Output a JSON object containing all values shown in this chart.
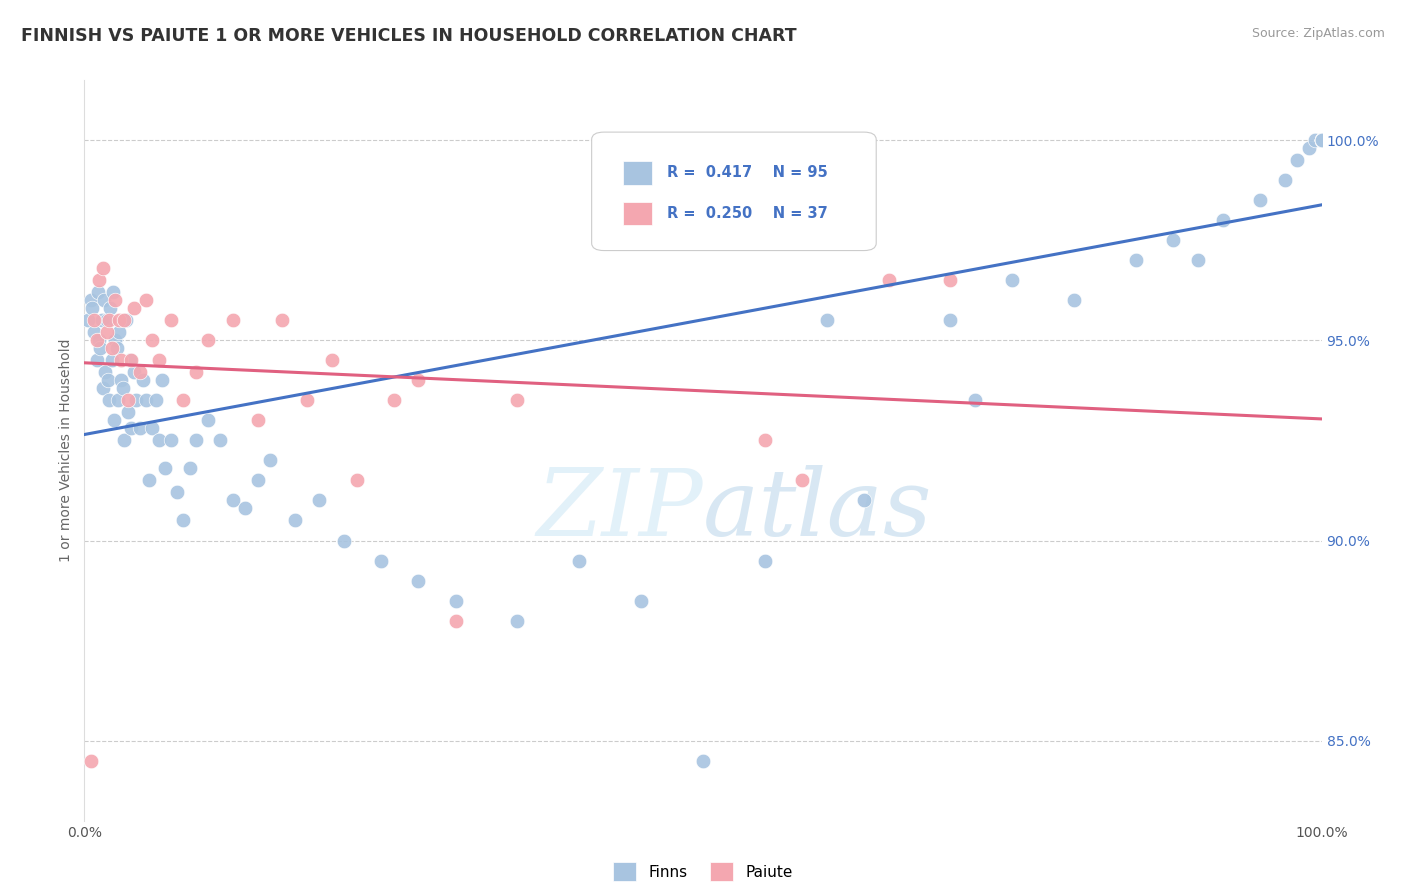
{
  "title": "FINNISH VS PAIUTE 1 OR MORE VEHICLES IN HOUSEHOLD CORRELATION CHART",
  "source": "Source: ZipAtlas.com",
  "ylabel": "1 or more Vehicles in Household",
  "xlim": [
    0.0,
    100.0
  ],
  "ylim": [
    83.0,
    101.5
  ],
  "yticks": [
    85.0,
    90.0,
    95.0,
    100.0
  ],
  "ytick_labels": [
    "85.0%",
    "90.0%",
    "95.0%",
    "100.0%"
  ],
  "finns_color": "#a8c4e0",
  "paiute_color": "#f4a7b0",
  "finns_line_color": "#4472c4",
  "paiute_line_color": "#e06080",
  "finns_R": 0.417,
  "finns_N": 95,
  "paiute_R": 0.25,
  "paiute_N": 37,
  "background_color": "#ffffff",
  "grid_color": "#cccccc",
  "finns_x": [
    0.3,
    0.5,
    0.6,
    0.8,
    1.0,
    1.1,
    1.2,
    1.3,
    1.4,
    1.5,
    1.6,
    1.7,
    1.8,
    1.9,
    2.0,
    2.1,
    2.2,
    2.3,
    2.4,
    2.5,
    2.6,
    2.7,
    2.8,
    3.0,
    3.1,
    3.2,
    3.4,
    3.5,
    3.7,
    3.8,
    4.0,
    4.2,
    4.5,
    4.7,
    5.0,
    5.2,
    5.5,
    5.8,
    6.0,
    6.3,
    6.5,
    7.0,
    7.5,
    8.0,
    8.5,
    9.0,
    10.0,
    11.0,
    12.0,
    13.0,
    14.0,
    15.0,
    17.0,
    19.0,
    21.0,
    24.0,
    27.0,
    30.0,
    35.0,
    40.0,
    45.0,
    50.0,
    55.0,
    60.0,
    63.0,
    70.0,
    72.0,
    75.0,
    80.0,
    85.0,
    88.0,
    90.0,
    92.0,
    95.0,
    97.0,
    98.0,
    99.0,
    99.5,
    100.0,
    100.0,
    100.0,
    100.0,
    100.0,
    100.0,
    100.0,
    100.0,
    100.0,
    100.0,
    100.0,
    100.0,
    100.0,
    100.0,
    100.0,
    100.0,
    100.0
  ],
  "finns_y": [
    95.5,
    96.0,
    95.8,
    95.2,
    94.5,
    96.2,
    95.0,
    94.8,
    95.5,
    93.8,
    96.0,
    94.2,
    95.5,
    94.0,
    93.5,
    95.8,
    94.5,
    96.2,
    93.0,
    95.0,
    94.8,
    93.5,
    95.2,
    94.0,
    93.8,
    92.5,
    95.5,
    93.2,
    94.5,
    92.8,
    94.2,
    93.5,
    92.8,
    94.0,
    93.5,
    91.5,
    92.8,
    93.5,
    92.5,
    94.0,
    91.8,
    92.5,
    91.2,
    90.5,
    91.8,
    92.5,
    93.0,
    92.5,
    91.0,
    90.8,
    91.5,
    92.0,
    90.5,
    91.0,
    90.0,
    89.5,
    89.0,
    88.5,
    88.0,
    89.5,
    88.5,
    84.5,
    89.5,
    95.5,
    91.0,
    95.5,
    93.5,
    96.5,
    96.0,
    97.0,
    97.5,
    97.0,
    98.0,
    98.5,
    99.0,
    99.5,
    99.8,
    100.0,
    100.0,
    100.0,
    100.0,
    100.0,
    100.0,
    100.0,
    100.0,
    100.0,
    100.0,
    100.0,
    100.0,
    100.0,
    100.0,
    100.0,
    100.0,
    100.0,
    100.0
  ],
  "paiute_x": [
    0.5,
    0.8,
    1.0,
    1.2,
    1.5,
    1.8,
    2.0,
    2.2,
    2.5,
    2.8,
    3.0,
    3.2,
    3.5,
    3.8,
    4.0,
    4.5,
    5.0,
    5.5,
    6.0,
    7.0,
    8.0,
    9.0,
    10.0,
    12.0,
    14.0,
    16.0,
    18.0,
    20.0,
    22.0,
    25.0,
    27.0,
    30.0,
    35.0,
    55.0,
    58.0,
    65.0,
    70.0
  ],
  "paiute_y": [
    84.5,
    95.5,
    95.0,
    96.5,
    96.8,
    95.2,
    95.5,
    94.8,
    96.0,
    95.5,
    94.5,
    95.5,
    93.5,
    94.5,
    95.8,
    94.2,
    96.0,
    95.0,
    94.5,
    95.5,
    93.5,
    94.2,
    95.0,
    95.5,
    93.0,
    95.5,
    93.5,
    94.5,
    91.5,
    93.5,
    94.0,
    88.0,
    93.5,
    92.5,
    91.5,
    96.5,
    96.5
  ]
}
